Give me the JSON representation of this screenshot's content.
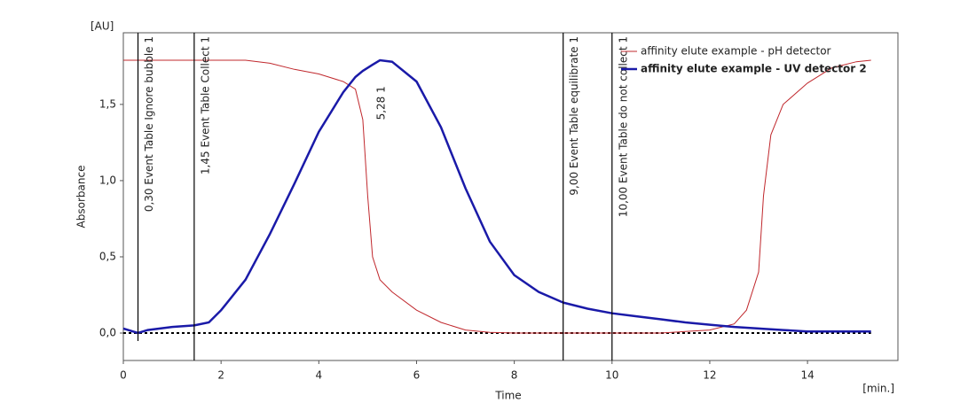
{
  "chart_data": {
    "type": "line",
    "y_unit": "[AU]",
    "y_label": "Absorbance",
    "x_label": "Time",
    "x_unit": "[min.]",
    "x": [
      0,
      0.3,
      0.5,
      1,
      1.45,
      1.75,
      2,
      2.5,
      3,
      3.5,
      4,
      4.5,
      4.75,
      4.9,
      5,
      5.1,
      5.25,
      5.5,
      6,
      6.5,
      7,
      7.5,
      8,
      8.5,
      9,
      9.5,
      10,
      10.5,
      11,
      11.5,
      12,
      12.5,
      12.75,
      13,
      13.1,
      13.25,
      13.5,
      14,
      14.5,
      15,
      15.3
    ],
    "series": [
      {
        "name": "affinity elute example - pH detector",
        "color": "#c0282d",
        "width": 1,
        "values": [
          1.79,
          1.79,
          1.79,
          1.79,
          1.79,
          1.79,
          1.79,
          1.79,
          1.77,
          1.73,
          1.7,
          1.65,
          1.6,
          1.4,
          0.9,
          0.5,
          0.35,
          0.27,
          0.15,
          0.07,
          0.02,
          0.005,
          0,
          0,
          0,
          0,
          0,
          0,
          0,
          0.01,
          0.02,
          0.06,
          0.15,
          0.4,
          0.9,
          1.3,
          1.5,
          1.64,
          1.74,
          1.78,
          1.79
        ]
      },
      {
        "name": "affinity elute example - UV detector 2",
        "color": "#1a1aa8",
        "width": 2.5,
        "values": [
          0.03,
          0,
          0.02,
          0.04,
          0.05,
          0.07,
          0.15,
          0.35,
          0.65,
          0.98,
          1.32,
          1.58,
          1.68,
          1.72,
          1.74,
          1.76,
          1.79,
          1.78,
          1.65,
          1.35,
          0.95,
          0.6,
          0.38,
          0.27,
          0.2,
          0.16,
          0.13,
          0.11,
          0.09,
          0.07,
          0.055,
          0.04,
          0.035,
          0.03,
          0.028,
          0.025,
          0.02,
          0.01,
          0.01,
          0.01,
          0.01
        ]
      }
    ],
    "event_lines": [
      {
        "x": 0.3,
        "label": "0,30 Event Table Ignore bubble 1"
      },
      {
        "x": 1.45,
        "label": "1,45 Event Table Collect 1"
      },
      {
        "x": 9,
        "label": "9,00 Event Table equilibrate 1"
      },
      {
        "x": 10,
        "label": "10,00 Event Table do not collect 1"
      }
    ],
    "peak_label": {
      "x": 5.28,
      "label": "5,28   1"
    },
    "xlim": [
      0,
      15.85
    ],
    "ylim": [
      -0.18,
      1.97
    ],
    "xticks": [
      0,
      2,
      4,
      6,
      8,
      10,
      12,
      14
    ],
    "yticks": [
      {
        "value": 0,
        "label": "0,0"
      },
      {
        "value": 0.5,
        "label": "0,5"
      },
      {
        "value": 1,
        "label": "1,0"
      },
      {
        "value": 1.5,
        "label": "1,5"
      }
    ],
    "baseline": 0,
    "legend": "top-right"
  }
}
